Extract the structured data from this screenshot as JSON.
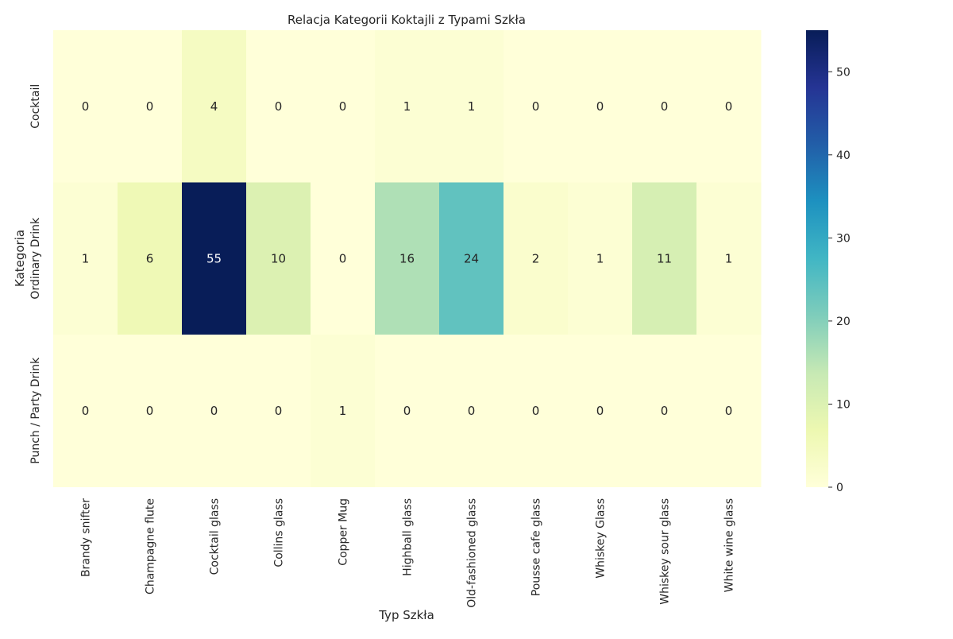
{
  "chart_data": {
    "type": "heatmap",
    "title": "Relacja Kategorii Koktajli z Typami Szkła",
    "xlabel": "Typ Szkła",
    "ylabel": "Kategoria",
    "x_categories": [
      "Brandy snifter",
      "Champagne flute",
      "Cocktail glass",
      "Collins glass",
      "Copper Mug",
      "Highball glass",
      "Old-fashioned glass",
      "Pousse cafe glass",
      "Whiskey Glass",
      "Whiskey sour glass",
      "White wine glass"
    ],
    "y_categories": [
      "Cocktail",
      "Ordinary Drink",
      "Punch / Party Drink"
    ],
    "values": [
      [
        0,
        0,
        4,
        0,
        0,
        1,
        1,
        0,
        0,
        0,
        0
      ],
      [
        1,
        6,
        55,
        10,
        0,
        16,
        24,
        2,
        1,
        11,
        1
      ],
      [
        0,
        0,
        0,
        0,
        1,
        0,
        0,
        0,
        0,
        0,
        0
      ]
    ],
    "colorbar": {
      "min": 0,
      "max": 55,
      "ticks": [
        0,
        10,
        20,
        30,
        40,
        50
      ],
      "colormap": "YlGnBu"
    },
    "annotations": "cell values shown"
  }
}
